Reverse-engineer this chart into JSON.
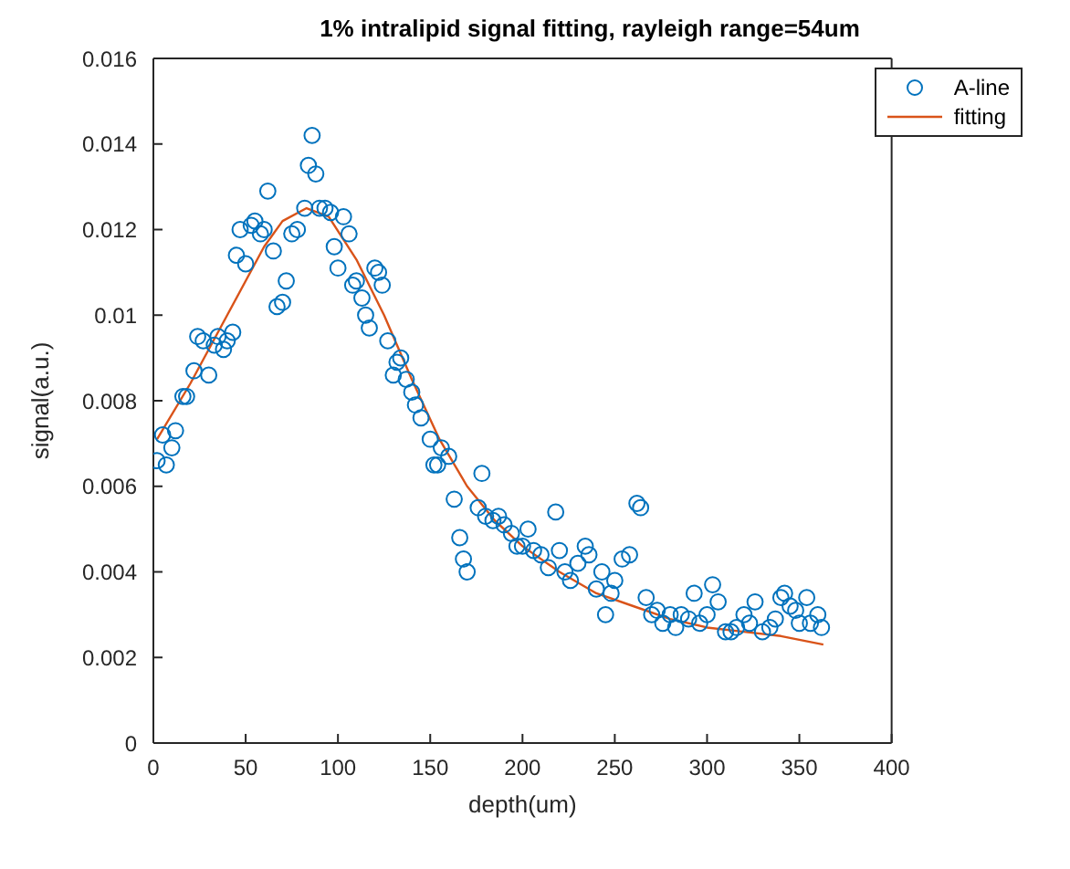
{
  "chart_data": {
    "type": "scatter",
    "title": "1% intralipid signal fitting, rayleigh range=54um",
    "xlabel": "depth(um)",
    "ylabel": "signal(a.u.)",
    "xlim": [
      0,
      400
    ],
    "xticks": [
      0,
      50,
      100,
      150,
      200,
      250,
      300,
      350,
      400
    ],
    "ylim": [
      0,
      0.016
    ],
    "yticks": [
      0,
      0.002,
      0.004,
      0.006,
      0.008,
      0.01,
      0.012,
      0.014,
      0.016
    ],
    "grid": false,
    "legend": "top right",
    "marker": "circle",
    "series": [
      {
        "name": "A-line",
        "color": "#0072bd",
        "x": [
          2,
          5,
          7,
          10,
          12,
          16,
          18,
          22,
          24,
          27,
          30,
          33,
          35,
          38,
          40,
          43,
          45,
          47,
          50,
          53,
          55,
          58,
          60,
          62,
          65,
          67,
          70,
          72,
          75,
          78,
          82,
          84,
          86,
          88,
          90,
          93,
          96,
          98,
          100,
          103,
          106,
          108,
          110,
          113,
          115,
          117,
          120,
          122,
          124,
          127,
          130,
          132,
          134,
          137,
          140,
          142,
          145,
          150,
          152,
          154,
          156,
          160,
          163,
          166,
          168,
          170,
          176,
          178,
          180,
          184,
          187,
          190,
          194,
          197,
          200,
          203,
          206,
          210,
          214,
          218,
          220,
          223,
          226,
          230,
          234,
          236,
          240,
          243,
          245,
          248,
          250,
          254,
          258,
          262,
          264,
          267,
          270,
          273,
          276,
          280,
          283,
          286,
          290,
          293,
          296,
          300,
          303,
          306,
          310,
          313,
          316,
          320,
          323,
          326,
          330,
          334,
          337,
          340,
          342,
          345,
          348,
          350,
          354,
          356,
          360,
          362
        ],
        "values": [
          0.0066,
          0.0072,
          0.0065,
          0.0069,
          0.0073,
          0.0081,
          0.0081,
          0.0087,
          0.0095,
          0.0094,
          0.0086,
          0.0093,
          0.0095,
          0.0092,
          0.0094,
          0.0096,
          0.0114,
          0.012,
          0.0112,
          0.0121,
          0.0122,
          0.0119,
          0.012,
          0.0129,
          0.0115,
          0.0102,
          0.0103,
          0.0108,
          0.0119,
          0.012,
          0.0125,
          0.0135,
          0.0142,
          0.0133,
          0.0125,
          0.0125,
          0.0124,
          0.0116,
          0.0111,
          0.0123,
          0.0119,
          0.0107,
          0.0108,
          0.0104,
          0.01,
          0.0097,
          0.0111,
          0.011,
          0.0107,
          0.0094,
          0.0086,
          0.0089,
          0.009,
          0.0085,
          0.0082,
          0.0079,
          0.0076,
          0.0071,
          0.0065,
          0.0065,
          0.0069,
          0.0067,
          0.0057,
          0.0048,
          0.0043,
          0.004,
          0.0055,
          0.0063,
          0.0053,
          0.0052,
          0.0053,
          0.0051,
          0.0049,
          0.0046,
          0.0046,
          0.005,
          0.0045,
          0.0044,
          0.0041,
          0.0054,
          0.0045,
          0.004,
          0.0038,
          0.0042,
          0.0046,
          0.0044,
          0.0036,
          0.004,
          0.003,
          0.0035,
          0.0038,
          0.0043,
          0.0044,
          0.0056,
          0.0055,
          0.0034,
          0.003,
          0.0031,
          0.0028,
          0.003,
          0.0027,
          0.003,
          0.0029,
          0.0035,
          0.0028,
          0.003,
          0.0037,
          0.0033,
          0.0026,
          0.0026,
          0.0027,
          0.003,
          0.0028,
          0.0033,
          0.0026,
          0.0027,
          0.0029,
          0.0034,
          0.0035,
          0.0032,
          0.0031,
          0.0028,
          0.0034,
          0.0028,
          0.003,
          0.0027
        ]
      },
      {
        "name": "fitting",
        "type": "line",
        "color": "#d95319",
        "marker": "none",
        "x": [
          2,
          20,
          40,
          60,
          70,
          83,
          95,
          110,
          125,
          140,
          155,
          170,
          185,
          200,
          220,
          240,
          260,
          280,
          300,
          320,
          340,
          363
        ],
        "values": [
          0.0071,
          0.0084,
          0.01,
          0.0116,
          0.0122,
          0.0125,
          0.0123,
          0.0113,
          0.01,
          0.0085,
          0.0071,
          0.006,
          0.0052,
          0.0046,
          0.004,
          0.0035,
          0.0032,
          0.0029,
          0.0027,
          0.0026,
          0.0025,
          0.0023
        ]
      }
    ]
  }
}
